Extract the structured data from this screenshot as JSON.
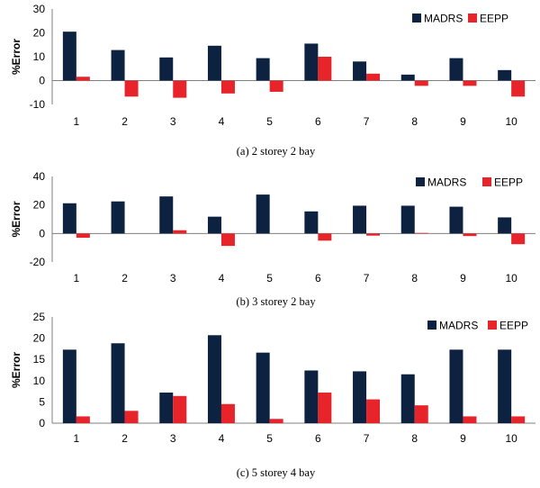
{
  "colors": {
    "MADRS": "#0d2240",
    "EEPP": "#e8242b"
  },
  "chart_data": [
    {
      "type": "bar",
      "caption": "(a) 2 storey 2 bay",
      "ylabel": "%Error",
      "xlabel": "",
      "categories": [
        "1",
        "2",
        "3",
        "4",
        "5",
        "6",
        "7",
        "8",
        "9",
        "10"
      ],
      "ylim": [
        -10,
        30
      ],
      "yticks": [
        -10,
        0,
        10,
        20,
        30
      ],
      "legend_position": "top-right",
      "series": [
        {
          "name": "MADRS",
          "values": [
            20.5,
            12.8,
            9.7,
            14.6,
            9.4,
            15.5,
            8.0,
            2.5,
            9.4,
            4.4
          ]
        },
        {
          "name": "EEPP",
          "values": [
            1.6,
            -6.7,
            -7.2,
            -5.4,
            -4.7,
            10.0,
            2.9,
            -2.2,
            -2.2,
            -6.7
          ]
        }
      ]
    },
    {
      "type": "bar",
      "caption": "(b) 3 storey 2 bay",
      "ylabel": "%Error",
      "xlabel": "",
      "categories": [
        "1",
        "2",
        "3",
        "4",
        "5",
        "6",
        "7",
        "8",
        "9",
        "10"
      ],
      "ylim": [
        -20,
        40
      ],
      "yticks": [
        -20,
        0,
        20,
        40
      ],
      "legend_position": "top-right",
      "series": [
        {
          "name": "MADRS",
          "values": [
            21.2,
            22.5,
            26.0,
            11.8,
            27.3,
            15.5,
            19.5,
            19.5,
            18.8,
            11.3
          ]
        },
        {
          "name": "EEPP",
          "values": [
            -3.0,
            0.0,
            2.3,
            -8.7,
            0.0,
            -5.0,
            -1.5,
            0.4,
            -1.8,
            -7.5
          ]
        }
      ]
    },
    {
      "type": "bar",
      "caption": "(c) 5 storey 4 bay",
      "ylabel": "%Error",
      "xlabel": "",
      "categories": [
        "1",
        "2",
        "3",
        "4",
        "5",
        "6",
        "7",
        "8",
        "9",
        "10"
      ],
      "ylim": [
        0,
        25
      ],
      "yticks": [
        0,
        5,
        10,
        15,
        20,
        25
      ],
      "legend_position": "top-right",
      "series": [
        {
          "name": "MADRS",
          "values": [
            17.3,
            18.8,
            7.2,
            20.7,
            16.6,
            12.4,
            12.2,
            11.5,
            17.3,
            17.3
          ]
        },
        {
          "name": "EEPP",
          "values": [
            1.6,
            2.9,
            6.4,
            4.5,
            1.0,
            7.2,
            5.6,
            4.2,
            1.6,
            1.6
          ]
        }
      ]
    }
  ]
}
